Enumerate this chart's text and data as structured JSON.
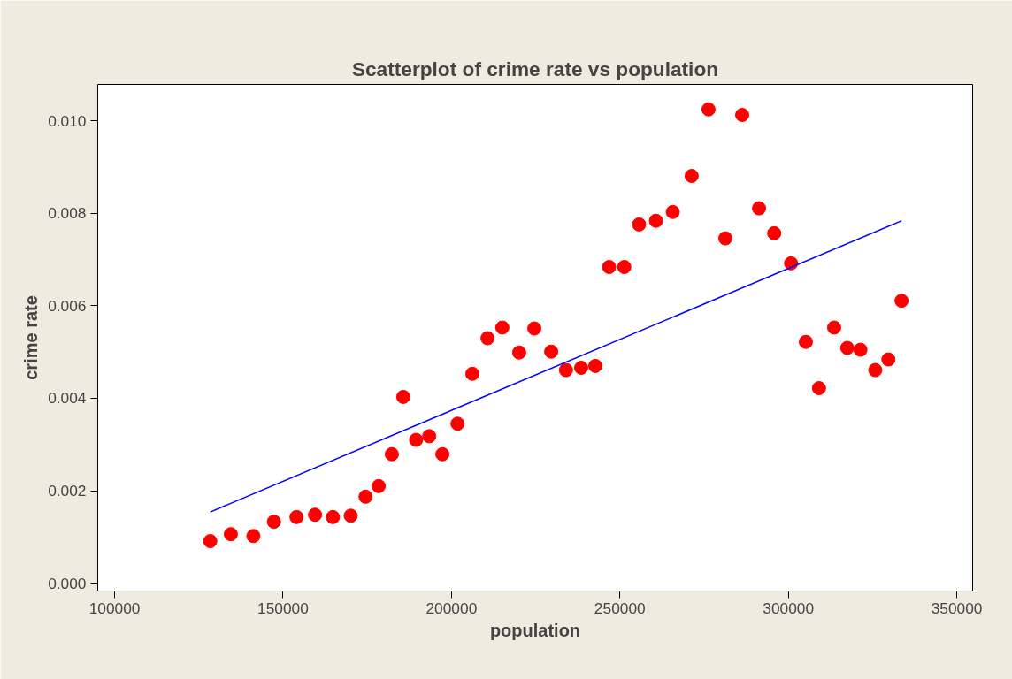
{
  "chart_data": {
    "type": "scatter",
    "title": "Scatterplot of crime rate vs population",
    "xlabel": "population",
    "ylabel": "crime rate",
    "xlim": [
      95000,
      354700
    ],
    "ylim": [
      -0.00017,
      0.01079
    ],
    "xticks": [
      100000,
      150000,
      200000,
      250000,
      300000,
      350000
    ],
    "yticks": [
      {
        "value": 0,
        "label": "0.000"
      },
      {
        "value": 0.002,
        "label": "0.002"
      },
      {
        "value": 0.004,
        "label": "0.004"
      },
      {
        "value": 0.006,
        "label": "0.006"
      },
      {
        "value": 0.008,
        "label": "0.008"
      },
      {
        "value": 0.01,
        "label": "0.010"
      }
    ],
    "grid": false,
    "marker": "circle",
    "series": [
      {
        "color": "#ff0000",
        "x": [
          128400,
          134500,
          141200,
          147300,
          154000,
          159500,
          164800,
          170100,
          174500,
          178400,
          182300,
          185700,
          189500,
          193400,
          197300,
          201800,
          206200,
          210700,
          215100,
          220100,
          224600,
          229600,
          234000,
          238500,
          242700,
          246800,
          251300,
          255700,
          260700,
          265700,
          271300,
          276300,
          281300,
          286300,
          291300,
          295800,
          300800,
          305200,
          309100,
          313600,
          317500,
          321400,
          325800,
          329700,
          333600
        ],
        "values": [
          0.00091,
          0.00106,
          0.00102,
          0.00133,
          0.00143,
          0.00148,
          0.00143,
          0.00146,
          0.00187,
          0.0021,
          0.00279,
          0.00403,
          0.0031,
          0.00318,
          0.00279,
          0.00345,
          0.00453,
          0.0053,
          0.00553,
          0.00499,
          0.00551,
          0.00501,
          0.00461,
          0.00466,
          0.0047,
          0.00684,
          0.00684,
          0.00776,
          0.00784,
          0.00803,
          0.00881,
          0.01025,
          0.00746,
          0.01013,
          0.00811,
          0.00757,
          0.00692,
          0.00522,
          0.00422,
          0.00553,
          0.00509,
          0.00505,
          0.00461,
          0.00484,
          0.00611
        ]
      },
      {
        "type": "line",
        "color": "#0000ff",
        "marker": "none",
        "x": [
          128400,
          333600
        ],
        "values": [
          0.00154,
          0.00784
        ]
      }
    ]
  }
}
